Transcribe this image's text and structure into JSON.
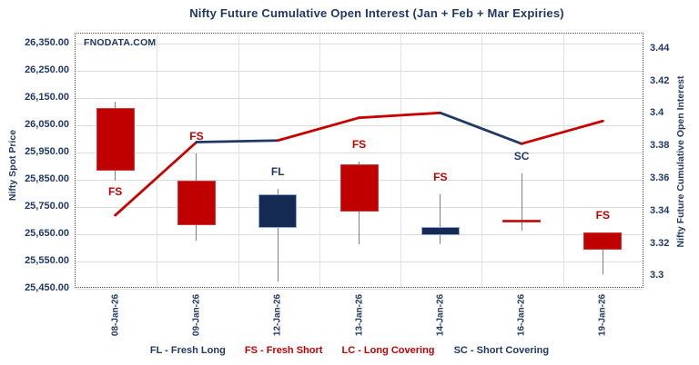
{
  "title": "Nifty Future Cumulative Open Interest (Jan  + Feb + Mar Expiries)",
  "watermark": "FNODATA.COM",
  "colors": {
    "navy": "#1F3864",
    "red": "#C00000",
    "candle_red": "#C00000",
    "candle_red_border": "#CC3A3A",
    "candle_navy": "#152A52",
    "candle_navy_border": "#8EA9DB",
    "line_red": "#C80000",
    "line_navy": "#1F3864",
    "wick_gray": "#808080",
    "grid_gray": "#DCDCDC"
  },
  "legend": {
    "items": [
      {
        "text": "FL - Fresh Long",
        "color": "#1F3864"
      },
      {
        "text": "FS - Fresh Short",
        "color": "#C00000"
      },
      {
        "text": "LC - Long Covering",
        "color": "#C00000"
      },
      {
        "text": "SC - Short Covering",
        "color": "#1F3864"
      }
    ]
  },
  "chart_data": {
    "type": "candlestick+line",
    "title": "Nifty Future Cumulative Open Interest (Jan  + Feb + Mar Expiries)",
    "grid": true,
    "categories": [
      "08-Jan-26",
      "09-Jan-26",
      "12-Jan-26",
      "13-Jan-26",
      "14-Jan-26",
      "16-Jan-26",
      "19-Jan-26"
    ],
    "left_axis": {
      "title": "Nifty Spot Price",
      "min": 25450,
      "max": 26350,
      "tick_step": 100,
      "tick_labels": [
        "26,350.00",
        "26,250.00",
        "26,150.00",
        "26,050.00",
        "25,950.00",
        "25,850.00",
        "25,750.00",
        "25,650.00",
        "25,550.00",
        "25,450.00"
      ]
    },
    "right_axis": {
      "title": "Nifty Future Cumulative Open Interest",
      "min": 3.3,
      "max": 3.44,
      "tick_step": 0.02,
      "tick_labels": [
        "3.44",
        "3.42",
        "3.4",
        "3.38",
        "3.36",
        "3.34",
        "3.32",
        "3.3"
      ]
    },
    "candles": [
      {
        "date": "08-Jan-26",
        "open": 26110,
        "high": 26135,
        "low": 25845,
        "close": 25880,
        "color": "red",
        "annotation": {
          "text": "FS",
          "color": "red",
          "position": "below"
        }
      },
      {
        "date": "09-Jan-26",
        "open": 25845,
        "high": 25945,
        "low": 25625,
        "close": 25680,
        "color": "red",
        "annotation": {
          "text": "FS",
          "color": "red",
          "position": "above"
        }
      },
      {
        "date": "12-Jan-26",
        "open": 25670,
        "high": 25815,
        "low": 25475,
        "close": 25795,
        "color": "navy",
        "annotation": {
          "text": "FL",
          "color": "navy",
          "position": "above"
        }
      },
      {
        "date": "13-Jan-26",
        "open": 25905,
        "high": 25915,
        "low": 25610,
        "close": 25730,
        "color": "red",
        "annotation": {
          "text": "FS",
          "color": "red",
          "position": "above"
        }
      },
      {
        "date": "14-Jan-26",
        "open": 25645,
        "high": 25795,
        "low": 25610,
        "close": 25675,
        "color": "navy",
        "annotation": {
          "text": "FS",
          "color": "red",
          "position": "above"
        }
      },
      {
        "date": "16-Jan-26",
        "open": 25700,
        "high": 25870,
        "low": 25660,
        "close": 25692,
        "color": "red",
        "annotation": {
          "text": "SC",
          "color": "navy",
          "position": "above"
        }
      },
      {
        "date": "19-Jan-26",
        "open": 25655,
        "high": 25655,
        "low": 25500,
        "close": 25590,
        "color": "red",
        "annotation": {
          "text": "FS",
          "color": "red",
          "position": "above"
        }
      }
    ],
    "oi_line": {
      "name": "Nifty Future Cumulative Open Interest",
      "values": [
        3.337,
        3.382,
        3.383,
        3.397,
        3.4,
        3.381,
        3.395
      ],
      "segment_colors": [
        "red",
        "navy",
        "red",
        "red",
        "navy",
        "red"
      ]
    }
  }
}
